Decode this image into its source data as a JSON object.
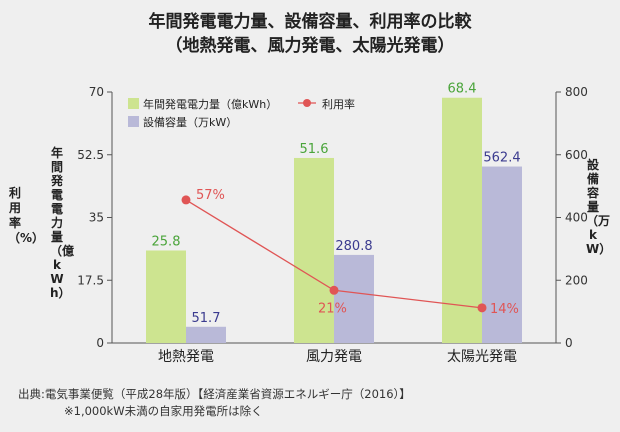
{
  "chart_data": {
    "type": "bar",
    "title_line1": "年間発電電力量、設備容量、利用率の比較",
    "title_line2": "（地熱発電、風力発電、太陽光発電）",
    "categories": [
      "地熱発電",
      "風力発電",
      "太陽光発電"
    ],
    "series": [
      {
        "name": "年間発電電力量（億kWh）",
        "values": [
          25.8,
          51.6,
          68.4
        ],
        "axis": "left",
        "color": "#cde490",
        "label_color": "#4aa43a"
      },
      {
        "name": "設備容量（万kW）",
        "values": [
          51.7,
          280.8,
          562.4
        ],
        "axis": "right",
        "color": "#b9b9d8",
        "label_color": "#3b3b8f"
      }
    ],
    "line_series": {
      "name": "利用率",
      "values": [
        57,
        21,
        14
      ],
      "labels": [
        "57%",
        "21%",
        "14%"
      ],
      "color": "#e05555"
    },
    "left_axis": {
      "label": "年間発電電力量（億kWh）",
      "ticks": [
        0,
        17.5,
        35,
        52.5,
        70
      ],
      "tick_labels": [
        "0",
        "17.5",
        "35",
        "52.5",
        "70"
      ],
      "range": [
        0,
        70
      ]
    },
    "rate_axis": {
      "label": "利用率（%）",
      "range": [
        0,
        100
      ]
    },
    "right_axis": {
      "label": "設備容量（万kW）",
      "ticks": [
        0,
        200,
        400,
        600,
        800
      ],
      "tick_labels": [
        "0",
        "200",
        "400",
        "600",
        "800"
      ],
      "range": [
        0,
        800
      ]
    },
    "legend": {
      "placement": "top-left"
    },
    "grid": false
  },
  "footer": {
    "source": "出典:電気事業便覧（平成28年版）【経済産業省資源エネルギー庁（2016）】",
    "note": "※1,000kW未満の自家用発電所は除く"
  }
}
